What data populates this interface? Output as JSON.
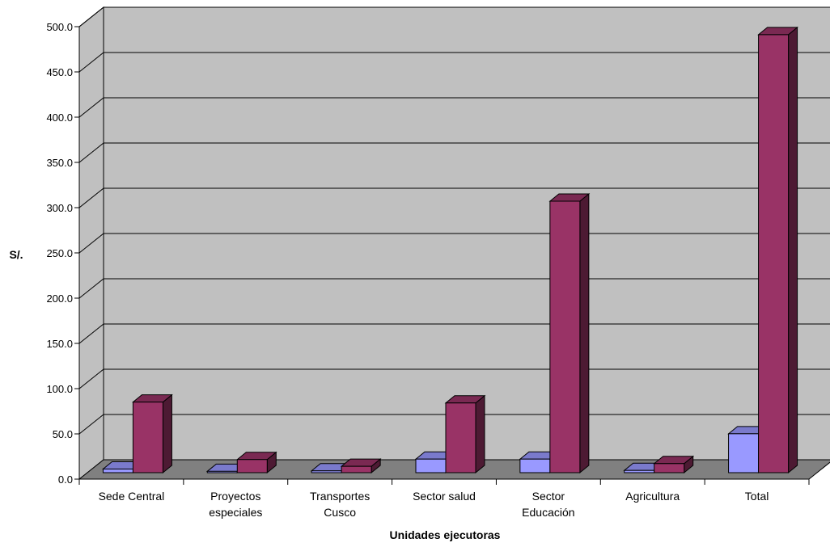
{
  "chart_data": {
    "type": "bar",
    "three_d": true,
    "categories": [
      [
        "Sede Central"
      ],
      [
        "Proyectos",
        "especiales"
      ],
      [
        "Transportes",
        "Cusco"
      ],
      [
        "Sector salud"
      ],
      [
        "Sector",
        "Educación"
      ],
      [
        "Agricultura"
      ],
      [
        "Total"
      ]
    ],
    "series": [
      {
        "color": "#9999ff",
        "values": [
          4,
          1.5,
          2,
          15,
          15,
          2.5,
          43
        ]
      },
      {
        "color": "#993366",
        "values": [
          78,
          14.5,
          7,
          77,
          300,
          10,
          484
        ]
      }
    ],
    "xlabel": "Unidades ejecutoras",
    "ylabel": "S/.",
    "ylim": [
      0,
      500
    ],
    "yticks": [
      "0.0",
      "50.0",
      "100.0",
      "150.0",
      "200.0",
      "250.0",
      "300.0",
      "350.0",
      "400.0",
      "450.0",
      "500.0"
    ],
    "grid": true,
    "legend": "none",
    "colors": {
      "wall": "#c0c0c0",
      "floor": "#808080",
      "grid": "#000000"
    }
  }
}
